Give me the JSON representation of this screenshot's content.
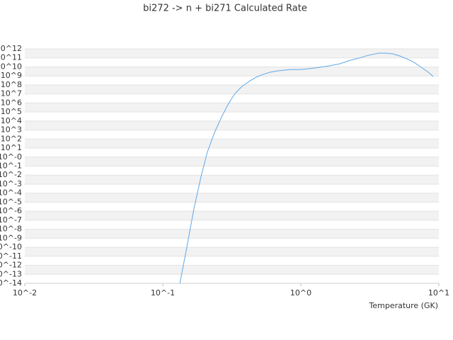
{
  "chart_data": {
    "type": "line",
    "title": "bi272 -> n + bi271 Calculated Rate",
    "x_label": "Temperature (GK)",
    "x_scale": "log",
    "y_scale": "log",
    "grid": true,
    "xlim": [
      0.01,
      10
    ],
    "ylim": [
      1e-14,
      1000000000000.0
    ],
    "xticks": [
      {
        "value": 0.01,
        "label": "10^-2"
      },
      {
        "value": 0.1,
        "label": "10^-1"
      },
      {
        "value": 1,
        "label": "10^0"
      },
      {
        "value": 10,
        "label": "10^1"
      }
    ],
    "yticks": [
      {
        "value": 1000000000000.0,
        "label": "10^12"
      },
      {
        "value": 100000000000.0,
        "label": "10^11"
      },
      {
        "value": 10000000000.0,
        "label": "10^10"
      },
      {
        "value": 1000000000.0,
        "label": "10^9"
      },
      {
        "value": 100000000.0,
        "label": "10^8"
      },
      {
        "value": 10000000.0,
        "label": "10^7"
      },
      {
        "value": 1000000.0,
        "label": "10^6"
      },
      {
        "value": 100000.0,
        "label": "10^5"
      },
      {
        "value": 10000.0,
        "label": "10^4"
      },
      {
        "value": 1000.0,
        "label": "10^3"
      },
      {
        "value": 100.0,
        "label": "10^2"
      },
      {
        "value": 10,
        "label": "10^1"
      },
      {
        "value": 1,
        "label": "10^-0"
      },
      {
        "value": 0.1,
        "label": "10^-1"
      },
      {
        "value": 0.01,
        "label": "10^-2"
      },
      {
        "value": 0.001,
        "label": "10^-3"
      },
      {
        "value": 0.0001,
        "label": "10^-4"
      },
      {
        "value": 1e-05,
        "label": "10^-5"
      },
      {
        "value": 1e-06,
        "label": "10^-6"
      },
      {
        "value": 1e-07,
        "label": "10^-7"
      },
      {
        "value": 1e-08,
        "label": "10^-8"
      },
      {
        "value": 1e-09,
        "label": "10^-9"
      },
      {
        "value": 1e-10,
        "label": "10^-10"
      },
      {
        "value": 1e-11,
        "label": "10^-11"
      },
      {
        "value": 1e-12,
        "label": "10^-12"
      },
      {
        "value": 1e-13,
        "label": "10^-13"
      },
      {
        "value": 1e-14,
        "label": "10^-14"
      }
    ],
    "x": [
      0.133,
      0.149,
      0.168,
      0.189,
      0.21,
      0.237,
      0.267,
      0.296,
      0.333,
      0.375,
      0.423,
      0.475,
      0.535,
      0.601,
      0.677,
      0.838,
      1.0,
      1.27,
      1.6,
      1.91,
      2.29,
      2.73,
      3.07,
      3.66,
      4.12,
      4.64,
      5.22,
      5.88,
      6.62,
      7.45,
      8.38,
      9.1
    ],
    "series": [
      {
        "color": "#5ea8e8",
        "values": [
          1e-14,
          8.5e-11,
          1.8e-06,
          0.0063,
          3.4,
          540,
          29000,
          630000,
          11000000.0,
          69000000.0,
          250000000.0,
          720000000.0,
          1500000000.0,
          2600000000.0,
          3600000000.0,
          5200000000.0,
          5200000000.0,
          7600000000.0,
          13000000000.0,
          22000000000.0,
          55000000000.0,
          110000000000.0,
          190000000000.0,
          340000000000.0,
          340000000000.0,
          280000000000.0,
          160000000000.0,
          79000000000.0,
          32000000000.0,
          9100000000.0,
          2600000000.0,
          870000000.0
        ]
      }
    ]
  }
}
